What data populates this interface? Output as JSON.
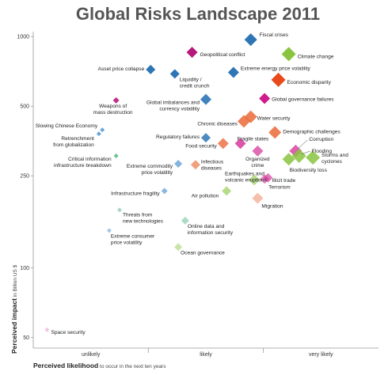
{
  "chart_data": {
    "type": "scatter",
    "title": "Global Risks Landscape 2011",
    "xlabel": {
      "bold": "Perceived likelihood",
      "light": " to occur in the next ten years"
    },
    "ylabel": {
      "bold": "Perceived impact",
      "light": " in Billion US $"
    },
    "xcategories": [
      "unlikely",
      "likely",
      "very likely"
    ],
    "yticks": [
      1000,
      500,
      250,
      100,
      50
    ],
    "yscale": "log",
    "ylim": [
      45,
      1050
    ],
    "xlim": [
      0,
      1
    ],
    "grid": false,
    "points": [
      {
        "label": "Fiscal crises",
        "x": 0.63,
        "y": 970,
        "color": "#2e75b6",
        "size": 8,
        "opacity": 1
      },
      {
        "label": "Climate change",
        "x": 0.74,
        "y": 840,
        "color": "#8ac43f",
        "size": 9,
        "opacity": 1
      },
      {
        "label": "Geopolitical conflict",
        "x": 0.46,
        "y": 855,
        "color": "#b5177a",
        "size": 7,
        "opacity": 1
      },
      {
        "label": "Asset price collapse",
        "x": 0.34,
        "y": 720,
        "color": "#2e75b6",
        "size": 6,
        "opacity": 1
      },
      {
        "label": "Liquidity / credit crunch",
        "x": 0.41,
        "y": 690,
        "color": "#2e75b6",
        "size": 6,
        "opacity": 1
      },
      {
        "label": "Extreme energy price volatility",
        "x": 0.58,
        "y": 700,
        "color": "#2e75b6",
        "size": 7,
        "opacity": 1
      },
      {
        "label": "Economic disparity",
        "x": 0.71,
        "y": 650,
        "color": "#e84a1b",
        "size": 9,
        "opacity": 1
      },
      {
        "label": "Weapons of mass destruction",
        "x": 0.24,
        "y": 530,
        "color": "#c0308c",
        "size": 4,
        "opacity": 1
      },
      {
        "label": "Global imbalances and currency volatility",
        "x": 0.5,
        "y": 535,
        "color": "#2e75b6",
        "size": 7,
        "opacity": 0.9
      },
      {
        "label": "Global governance failures",
        "x": 0.67,
        "y": 540,
        "color": "#d01d8c",
        "size": 7,
        "opacity": 1
      },
      {
        "label": "Chronic diseases",
        "x": 0.61,
        "y": 430,
        "color": "#e8602c",
        "size": 8,
        "opacity": 0.8
      },
      {
        "label": "Water security",
        "x": 0.63,
        "y": 450,
        "color": "#e8602c",
        "size": 8,
        "opacity": 0.8
      },
      {
        "label": "Slowing Chinese Economy",
        "x": 0.2,
        "y": 395,
        "color": "#5b9bd5",
        "size": 3,
        "opacity": 0.9
      },
      {
        "label": "Retrenchment from globalization",
        "x": 0.19,
        "y": 380,
        "color": "#5b9bd5",
        "size": 3,
        "opacity": 0.9
      },
      {
        "label": "Regulatory failures",
        "x": 0.5,
        "y": 365,
        "color": "#2e75b6",
        "size": 6,
        "opacity": 0.85
      },
      {
        "label": "Demographic challenges",
        "x": 0.7,
        "y": 385,
        "color": "#e8602c",
        "size": 8,
        "opacity": 0.8
      },
      {
        "label": "Food security",
        "x": 0.55,
        "y": 345,
        "color": "#e8602c",
        "size": 7,
        "opacity": 0.75
      },
      {
        "label": "Fragile states",
        "x": 0.6,
        "y": 345,
        "color": "#d01d8c",
        "size": 7,
        "opacity": 0.75
      },
      {
        "label": "Critical information infrastructure breakdown",
        "x": 0.24,
        "y": 305,
        "color": "#5cb88a",
        "size": 3,
        "opacity": 0.9
      },
      {
        "label": "Organized crime",
        "x": 0.65,
        "y": 320,
        "color": "#d01d8c",
        "size": 7,
        "opacity": 0.65
      },
      {
        "label": "Corruption",
        "x": 0.76,
        "y": 320,
        "color": "#d01d8c",
        "size": 8,
        "opacity": 0.7
      },
      {
        "label": "Flooding",
        "x": 0.77,
        "y": 305,
        "color": "#8ac43f",
        "size": 9,
        "opacity": 0.85
      },
      {
        "label": "Storms and cyclones",
        "x": 0.81,
        "y": 300,
        "color": "#8ac43f",
        "size": 9,
        "opacity": 0.85
      },
      {
        "label": "Biodiversity loss",
        "x": 0.74,
        "y": 295,
        "color": "#8ac43f",
        "size": 8,
        "opacity": 0.85
      },
      {
        "label": "Extreme commodity price volatility",
        "x": 0.42,
        "y": 282,
        "color": "#5b9bd5",
        "size": 5,
        "opacity": 0.75
      },
      {
        "label": "Infectious diseases",
        "x": 0.47,
        "y": 279,
        "color": "#e8602c",
        "size": 6,
        "opacity": 0.6
      },
      {
        "label": "Earthquakes and volcanic eruptions",
        "x": 0.64,
        "y": 240,
        "color": "#8ac43f",
        "size": 7,
        "opacity": 0.6
      },
      {
        "label": "Illicit trade",
        "x": 0.68,
        "y": 245,
        "color": "#d01d8c",
        "size": 6,
        "opacity": 0.6
      },
      {
        "label": "Terrorism",
        "x": 0.67,
        "y": 242,
        "color": "#d01d8c",
        "size": 6,
        "opacity": 0.5
      },
      {
        "label": "Infrastructure fragility",
        "x": 0.38,
        "y": 215,
        "color": "#5b9bd5",
        "size": 4,
        "opacity": 0.7
      },
      {
        "label": "Air pollution",
        "x": 0.56,
        "y": 215,
        "color": "#8ac43f",
        "size": 6,
        "opacity": 0.6
      },
      {
        "label": "Migration",
        "x": 0.65,
        "y": 200,
        "color": "#e8602c",
        "size": 7,
        "opacity": 0.4
      },
      {
        "label": "Threats from new technologies",
        "x": 0.25,
        "y": 178,
        "color": "#5cb88a",
        "size": 3,
        "opacity": 0.55
      },
      {
        "label": "Online data and information security",
        "x": 0.44,
        "y": 160,
        "color": "#5cb88a",
        "size": 5,
        "opacity": 0.5
      },
      {
        "label": "Extreme consumer price volatility",
        "x": 0.22,
        "y": 145,
        "color": "#5b9bd5",
        "size": 3,
        "opacity": 0.55
      },
      {
        "label": "Ocean governance",
        "x": 0.42,
        "y": 123,
        "color": "#8ac43f",
        "size": 5,
        "opacity": 0.45
      },
      {
        "label": "Space security",
        "x": 0.04,
        "y": 54,
        "color": "#d01d8c",
        "size": 3,
        "opacity": 0.25
      }
    ]
  }
}
